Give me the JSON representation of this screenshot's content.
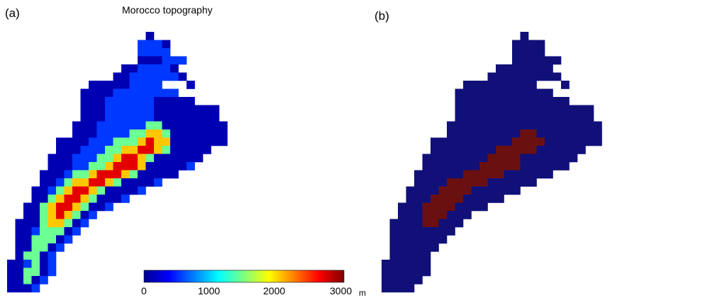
{
  "panels": {
    "a_label": "(a)",
    "b_label": "(b)"
  },
  "chart_data": [
    {
      "type": "heatmap",
      "panel": "a",
      "title": "Morocco topography",
      "colormap": "jet",
      "value_range": [
        0,
        3000
      ],
      "colorbar": {
        "ticks": [
          "0",
          "1000",
          "2000",
          "3000"
        ],
        "tick_values": [
          0,
          1000,
          2000,
          3000
        ],
        "unit": "m"
      },
      "rows": [
        "_________________9_______",
        "________________8889_____",
        "________________8888_____",
        "________________999888___",
        "______________9988889____",
        "_____________998888889___",
        "__________999998888___9__",
        "_________999988888888_____",
        "_________99988888899999____",
        "_________99988888899999999_",
        "_________99988888899999999_",
        "________999888888AA99999999",
        "________9998888AABBA9999999",
        "______9999888AAABCBB9999999",
        "______999888AABBCCBA99999__",
        "_____999888AABCCBA999999___",
        "_____99988AABCCCB999998____",
        "____9998AABCCCBA99999______",
        "____998ABBCCBA99998________",
        "___998ABCCBA99998__________",
        "___99ABCCBA9998____________",
        "__99ABCCBA998______________",
        "__99ABCBA98________________",
        "_999ABBA98_________________",
        "_998AAA98__________________",
        "_99AAA98___________________",
        "_99AA98____________________",
        "_9AA98_____________________",
        "998A98_____________________",
        "99AA98_____________________",
        "99A98______________________",
        "9998_______________________"
      ],
      "legend_note": "0-9 and A-F encode elevation on a 0-3000 m scale"
    },
    {
      "type": "heatmap",
      "panel": "b",
      "colors": {
        "background": "#101078",
        "highlight": "#6b1010"
      }
    }
  ]
}
